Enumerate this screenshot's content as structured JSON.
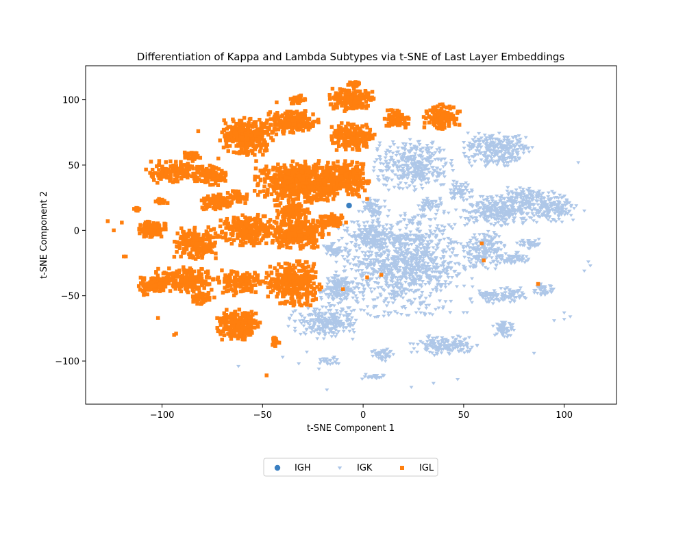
{
  "chart_data": {
    "type": "scatter",
    "title": "Differentiation of Kappa and Lambda Subtypes via t-SNE of Last Layer Embeddings",
    "xlabel": "t-SNE Component 1",
    "ylabel": "t-SNE Component 2",
    "xlim": [
      -138,
      126
    ],
    "ylim": [
      -133,
      126
    ],
    "x_ticks": [
      -100,
      -50,
      0,
      50,
      100
    ],
    "y_ticks": [
      -100,
      -50,
      0,
      50,
      100
    ],
    "x_tick_labels": [
      "−100",
      "−50",
      "0",
      "50",
      "100"
    ],
    "y_tick_labels": [
      "−100",
      "−50",
      "0",
      "50",
      "100"
    ],
    "grid": false,
    "legend_position": "bottom-center",
    "series": [
      {
        "name": "IGH",
        "color": "#3a7fc1",
        "marker": "circle",
        "points": [
          [
            -7,
            19
          ]
        ]
      },
      {
        "name": "IGK",
        "color": "#aec7e8",
        "marker": "triangle-down",
        "clusters": [
          {
            "cx": 20,
            "cy": -25,
            "rx": 32,
            "ry": 38,
            "n": 1100
          },
          {
            "cx": -12,
            "cy": -45,
            "rx": 9,
            "ry": 10,
            "n": 160
          },
          {
            "cx": -20,
            "cy": -70,
            "rx": 16,
            "ry": 12,
            "n": 260
          },
          {
            "cx": 40,
            "cy": -88,
            "rx": 16,
            "ry": 7,
            "n": 160
          },
          {
            "cx": 10,
            "cy": -95,
            "rx": 6,
            "ry": 5,
            "n": 50
          },
          {
            "cx": 5,
            "cy": -5,
            "rx": 10,
            "ry": 10,
            "n": 120
          },
          {
            "cx": 60,
            "cy": -15,
            "rx": 10,
            "ry": 15,
            "n": 180
          },
          {
            "cx": 73,
            "cy": -50,
            "rx": 8,
            "ry": 6,
            "n": 70
          },
          {
            "cx": 70,
            "cy": -75,
            "rx": 5,
            "ry": 6,
            "n": 60
          },
          {
            "cx": 63,
            "cy": -50,
            "rx": 6,
            "ry": 5,
            "n": 50
          },
          {
            "cx": 25,
            "cy": 50,
            "rx": 18,
            "ry": 18,
            "n": 380
          },
          {
            "cx": 48,
            "cy": 30,
            "rx": 6,
            "ry": 8,
            "n": 60
          },
          {
            "cx": 67,
            "cy": 62,
            "rx": 16,
            "ry": 12,
            "n": 300
          },
          {
            "cx": 68,
            "cy": 15,
            "rx": 17,
            "ry": 11,
            "n": 300
          },
          {
            "cx": 93,
            "cy": 18,
            "rx": 11,
            "ry": 11,
            "n": 180
          },
          {
            "cx": 80,
            "cy": 25,
            "rx": 9,
            "ry": 8,
            "n": 100
          },
          {
            "cx": 75,
            "cy": -22,
            "rx": 7,
            "ry": 5,
            "n": 60
          },
          {
            "cx": 5,
            "cy": 18,
            "rx": 6,
            "ry": 7,
            "n": 60
          },
          {
            "cx": 33,
            "cy": 20,
            "rx": 6,
            "ry": 5,
            "n": 50
          },
          {
            "cx": 90,
            "cy": -45,
            "rx": 5,
            "ry": 5,
            "n": 40
          },
          {
            "cx": 83,
            "cy": -10,
            "rx": 6,
            "ry": 4,
            "n": 40
          },
          {
            "cx": -15,
            "cy": -15,
            "rx": 5,
            "ry": 5,
            "n": 40
          },
          {
            "cx": 5,
            "cy": -112,
            "rx": 5,
            "ry": 2,
            "n": 25
          },
          {
            "cx": -18,
            "cy": -100,
            "rx": 6,
            "ry": 3,
            "n": 25
          }
        ],
        "outliers": [
          [
            -62,
            -104
          ],
          [
            -32,
            -102
          ],
          [
            -28,
            -93
          ],
          [
            -18,
            -122
          ],
          [
            -22,
            -106
          ],
          [
            -40,
            -97
          ],
          [
            24,
            -120
          ],
          [
            35,
            -117
          ],
          [
            47,
            -114
          ],
          [
            107,
            52
          ],
          [
            112,
            -24
          ],
          [
            113,
            -27
          ],
          [
            110,
            -31
          ],
          [
            103,
            -66
          ],
          [
            100,
            -68
          ],
          [
            95,
            -69
          ],
          [
            85,
            -94
          ],
          [
            100,
            -63
          ],
          [
            106,
            19
          ],
          [
            110,
            15
          ]
        ]
      },
      {
        "name": "IGL",
        "color": "#ff7f0e",
        "marker": "square",
        "clusters": [
          {
            "cx": -30,
            "cy": 37,
            "rx": 22,
            "ry": 15,
            "n": 620
          },
          {
            "cx": -8,
            "cy": 40,
            "rx": 10,
            "ry": 12,
            "n": 200
          },
          {
            "cx": -58,
            "cy": 72,
            "rx": 12,
            "ry": 13,
            "n": 280
          },
          {
            "cx": -35,
            "cy": 83,
            "rx": 12,
            "ry": 9,
            "n": 210
          },
          {
            "cx": -33,
            "cy": 100,
            "rx": 4,
            "ry": 4,
            "n": 30
          },
          {
            "cx": -5,
            "cy": 100,
            "rx": 11,
            "ry": 8,
            "n": 170
          },
          {
            "cx": -5,
            "cy": 112,
            "rx": 4,
            "ry": 2,
            "n": 25
          },
          {
            "cx": -5,
            "cy": 72,
            "rx": 10,
            "ry": 10,
            "n": 170
          },
          {
            "cx": 17,
            "cy": 85,
            "rx": 6,
            "ry": 7,
            "n": 70
          },
          {
            "cx": 39,
            "cy": 87,
            "rx": 9,
            "ry": 9,
            "n": 130
          },
          {
            "cx": -95,
            "cy": 45,
            "rx": 12,
            "ry": 8,
            "n": 140
          },
          {
            "cx": -77,
            "cy": 42,
            "rx": 9,
            "ry": 7,
            "n": 110
          },
          {
            "cx": -85,
            "cy": 57,
            "rx": 4,
            "ry": 4,
            "n": 30
          },
          {
            "cx": -73,
            "cy": 21,
            "rx": 7,
            "ry": 6,
            "n": 100
          },
          {
            "cx": -105,
            "cy": 1,
            "rx": 7,
            "ry": 6,
            "n": 110
          },
          {
            "cx": -83,
            "cy": -10,
            "rx": 10,
            "ry": 12,
            "n": 210
          },
          {
            "cx": -57,
            "cy": 0,
            "rx": 13,
            "ry": 11,
            "n": 220
          },
          {
            "cx": -33,
            "cy": -2,
            "rx": 15,
            "ry": 12,
            "n": 260
          },
          {
            "cx": -35,
            "cy": 15,
            "rx": 9,
            "ry": 7,
            "n": 110
          },
          {
            "cx": -15,
            "cy": 7,
            "rx": 6,
            "ry": 5,
            "n": 70
          },
          {
            "cx": -35,
            "cy": -40,
            "rx": 13,
            "ry": 16,
            "n": 310
          },
          {
            "cx": -88,
            "cy": -38,
            "rx": 15,
            "ry": 9,
            "n": 200
          },
          {
            "cx": -105,
            "cy": -42,
            "rx": 6,
            "ry": 7,
            "n": 80
          },
          {
            "cx": -80,
            "cy": -52,
            "rx": 6,
            "ry": 5,
            "n": 50
          },
          {
            "cx": -60,
            "cy": -40,
            "rx": 11,
            "ry": 9,
            "n": 130
          },
          {
            "cx": -62,
            "cy": -72,
            "rx": 10,
            "ry": 11,
            "n": 200
          },
          {
            "cx": -43,
            "cy": -85,
            "rx": 2,
            "ry": 5,
            "n": 25
          },
          {
            "cx": -62,
            "cy": 25,
            "rx": 5,
            "ry": 5,
            "n": 40
          },
          {
            "cx": -100,
            "cy": 22,
            "rx": 3,
            "ry": 2,
            "n": 15
          },
          {
            "cx": -113,
            "cy": 16,
            "rx": 2,
            "ry": 2,
            "n": 10
          }
        ],
        "outliers": [
          [
            -127,
            7
          ],
          [
            -124,
            0
          ],
          [
            -120,
            6
          ],
          [
            -118,
            -20
          ],
          [
            -119,
            -20
          ],
          [
            -102,
            -67
          ],
          [
            -94,
            -80
          ],
          [
            -93,
            -79
          ],
          [
            -48,
            -111
          ],
          [
            -82,
            76
          ],
          [
            -43,
            98
          ],
          [
            2,
            24
          ],
          [
            -2,
            26
          ],
          [
            59,
            -10
          ],
          [
            60,
            -23
          ],
          [
            87,
            -41
          ],
          [
            9,
            -34
          ],
          [
            2,
            -36
          ],
          [
            -10,
            -45
          ],
          [
            -72,
            55
          ]
        ]
      }
    ]
  },
  "legend": {
    "items": [
      {
        "label": "IGH",
        "color": "#3a7fc1",
        "marker": "circle"
      },
      {
        "label": "IGK",
        "color": "#aec7e8",
        "marker": "triangle-down"
      },
      {
        "label": "IGL",
        "color": "#ff7f0e",
        "marker": "square"
      }
    ]
  }
}
